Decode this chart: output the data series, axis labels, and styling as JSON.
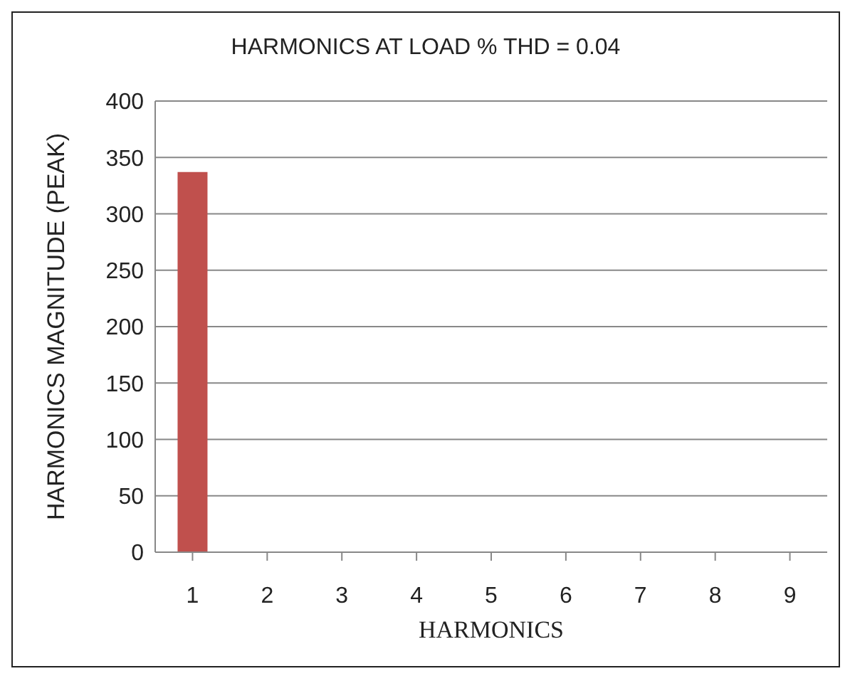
{
  "chart_data": {
    "type": "bar",
    "title": "HARMONICS AT LOAD % THD = 0.04",
    "xlabel": "HARMONICS",
    "ylabel": "HARMONICS  MAGNITUDE (PEAK)",
    "categories": [
      "1",
      "2",
      "3",
      "4",
      "5",
      "6",
      "7",
      "8",
      "9"
    ],
    "values": [
      337,
      0,
      0,
      0,
      0,
      0,
      0,
      0,
      0
    ],
    "color": "#c0504d",
    "ylim": [
      0,
      400
    ],
    "yticks": [
      0,
      50,
      100,
      150,
      200,
      250,
      300,
      350,
      400
    ],
    "grid": "y"
  }
}
